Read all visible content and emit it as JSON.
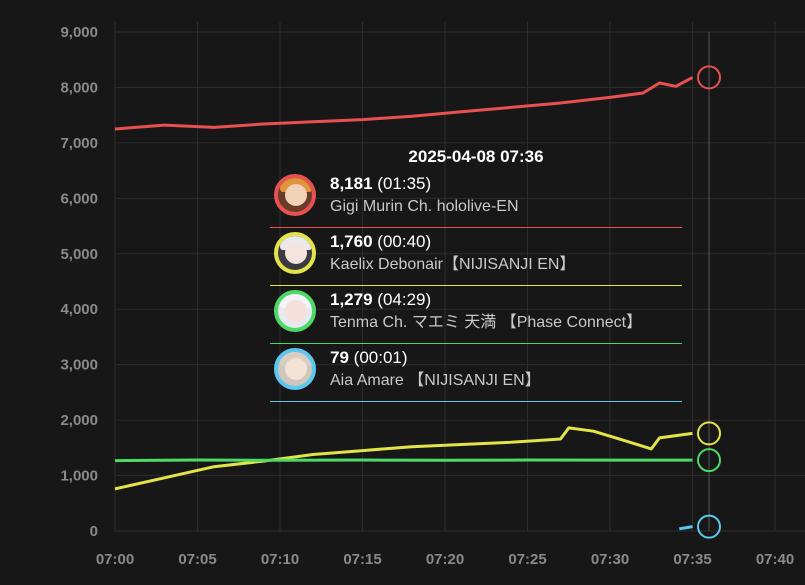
{
  "chart_data": {
    "type": "line",
    "x_label_ticks": [
      "07:00",
      "07:05",
      "07:10",
      "07:15",
      "07:20",
      "07:25",
      "07:30",
      "07:35",
      "07:40"
    ],
    "y_ticks": [
      "0",
      "1,000",
      "2,000",
      "3,000",
      "4,000",
      "5,000",
      "6,000",
      "7,000",
      "8,000",
      "9,000"
    ],
    "ylim": [
      0,
      9000
    ],
    "xlim": [
      "07:00",
      "07:40"
    ],
    "grid": true,
    "series": [
      {
        "name": "Gigi Murin Ch. hololive-EN",
        "color": "#e8514f",
        "points": [
          [
            "07:00",
            7250
          ],
          [
            "07:03",
            7320
          ],
          [
            "07:06",
            7280
          ],
          [
            "07:09",
            7340
          ],
          [
            "07:12",
            7380
          ],
          [
            "07:15",
            7420
          ],
          [
            "07:18",
            7480
          ],
          [
            "07:21",
            7560
          ],
          [
            "07:24",
            7640
          ],
          [
            "07:27",
            7720
          ],
          [
            "07:30",
            7820
          ],
          [
            "07:32",
            7900
          ],
          [
            "07:33",
            8080
          ],
          [
            "07:34",
            8020
          ],
          [
            "07:35",
            8181
          ]
        ]
      },
      {
        "name": "Kaelix Debonair【NIJISANJI EN】",
        "color": "#e3e34a",
        "points": [
          [
            "07:00",
            760
          ],
          [
            "07:03",
            960
          ],
          [
            "07:06",
            1160
          ],
          [
            "07:09",
            1260
          ],
          [
            "07:12",
            1380
          ],
          [
            "07:15",
            1450
          ],
          [
            "07:18",
            1520
          ],
          [
            "07:21",
            1560
          ],
          [
            "07:24",
            1600
          ],
          [
            "07:26",
            1640
          ],
          [
            "07:27",
            1660
          ],
          [
            "07:27.5",
            1860
          ],
          [
            "07:29",
            1800
          ],
          [
            "07:31",
            1620
          ],
          [
            "07:32.5",
            1480
          ],
          [
            "07:33",
            1680
          ],
          [
            "07:35",
            1760
          ]
        ]
      },
      {
        "name": "Tenma Ch. マエミ 天満 【Phase Connect】",
        "color": "#4cd965",
        "points": [
          [
            "07:00",
            1270
          ],
          [
            "07:05",
            1280
          ],
          [
            "07:10",
            1275
          ],
          [
            "07:15",
            1280
          ],
          [
            "07:20",
            1275
          ],
          [
            "07:25",
            1280
          ],
          [
            "07:30",
            1278
          ],
          [
            "07:35",
            1279
          ]
        ]
      },
      {
        "name": "Aia Amare 【NIJISANJI EN】",
        "color": "#5cc8f0",
        "points": [
          [
            "07:34.2",
            40
          ],
          [
            "07:35",
            79
          ]
        ]
      }
    ]
  },
  "tooltip": {
    "title": "2025-04-08 07:36",
    "rows": [
      {
        "value": "8,181",
        "duration": "(01:35)",
        "name": "Gigi Murin Ch. hololive-EN",
        "color": "#e8514f",
        "avatar": "avatar-gigi-icon"
      },
      {
        "value": "1,760",
        "duration": "(00:40)",
        "name": "Kaelix Debonair【NIJISANJI EN】",
        "color": "#e3e34a",
        "avatar": "avatar-kaelix-icon"
      },
      {
        "value": "1,279",
        "duration": "(04:29)",
        "name": "Tenma Ch. マエミ 天満 【Phase Connect】",
        "color": "#4cd965",
        "avatar": "avatar-tenma-icon"
      },
      {
        "value": "79",
        "duration": "(00:01)",
        "name": "Aia Amare 【NIJISANJI EN】",
        "color": "#5cc8f0",
        "avatar": "avatar-aia-icon"
      }
    ]
  }
}
